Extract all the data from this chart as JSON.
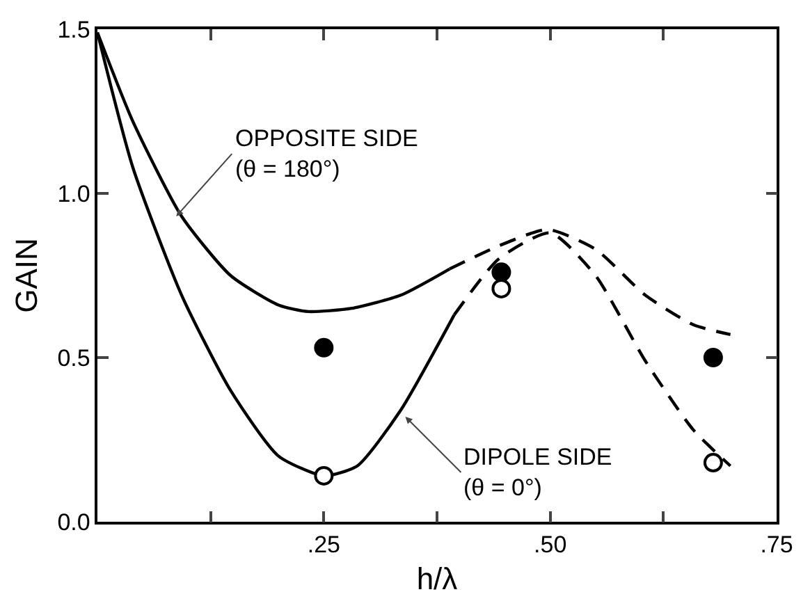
{
  "chart_data": {
    "type": "line",
    "xlabel": "h/λ",
    "ylabel": "GAIN",
    "xlim": [
      0,
      0.75
    ],
    "ylim": [
      0,
      1.5
    ],
    "xticks": [
      {
        "value": 0.125,
        "label": null
      },
      {
        "value": 0.25,
        "label": ".25"
      },
      {
        "value": 0.375,
        "label": null
      },
      {
        "value": 0.5,
        "label": ".50"
      },
      {
        "value": 0.625,
        "label": null
      },
      {
        "value": 0.75,
        "label": ".75"
      }
    ],
    "yticks": [
      {
        "value": 0,
        "label": "0.0"
      },
      {
        "value": 0.5,
        "label": "0.5"
      },
      {
        "value": 1,
        "label": "1.0"
      },
      {
        "value": 1.5,
        "label": "1.5"
      }
    ],
    "grid": false,
    "legend": false,
    "marker": "none",
    "series": [
      {
        "color": "#000000",
        "line_style": "solid",
        "x": [
          0,
          0.039,
          0.093,
          0.147,
          0.2,
          0.233,
          0.281,
          0.335,
          0.389
        ],
        "values": [
          1.49,
          1.22,
          0.93,
          0.75,
          0.66,
          0.64,
          0.65,
          0.69,
          0.77
        ]
      },
      {
        "color": "#000000",
        "line_style": "dashed",
        "x": [
          0.389,
          0.443,
          0.497,
          0.55,
          0.605,
          0.658,
          0.699
        ],
        "values": [
          0.77,
          0.84,
          0.89,
          0.83,
          0.69,
          0.6,
          0.57
        ]
      },
      {
        "color": "#000000",
        "line_style": "solid",
        "x": [
          0,
          0.039,
          0.093,
          0.147,
          0.2,
          0.25,
          0.287,
          0.335,
          0.394
        ],
        "values": [
          1.49,
          1.08,
          0.69,
          0.4,
          0.2,
          0.14,
          0.17,
          0.34,
          0.63
        ]
      },
      {
        "color": "#000000",
        "line_style": "dashed",
        "x": [
          0.394,
          0.443,
          0.5,
          0.55,
          0.605,
          0.658,
          0.699
        ],
        "values": [
          0.63,
          0.8,
          0.88,
          0.75,
          0.49,
          0.28,
          0.17
        ]
      },
      {
        "type": "scatter",
        "marker": "circle",
        "color": "#000000",
        "x": [
          0.25,
          0.446,
          0.68
        ],
        "values": [
          0.53,
          0.76,
          0.5
        ]
      },
      {
        "type": "scatter",
        "marker": "circle",
        "color": "#ffffff",
        "x": [
          0.25,
          0.446,
          0.68
        ],
        "values": [
          0.14,
          0.71,
          0.18
        ]
      }
    ],
    "annotations": [
      {
        "text": "OPPOSITE SIDE\n(θ = 180°)",
        "x": 0.087,
        "y": 0.93
      },
      {
        "text": "DIPOLE SIDE\n(θ = 0°)",
        "x": 0.34,
        "y": 0.32
      }
    ]
  }
}
